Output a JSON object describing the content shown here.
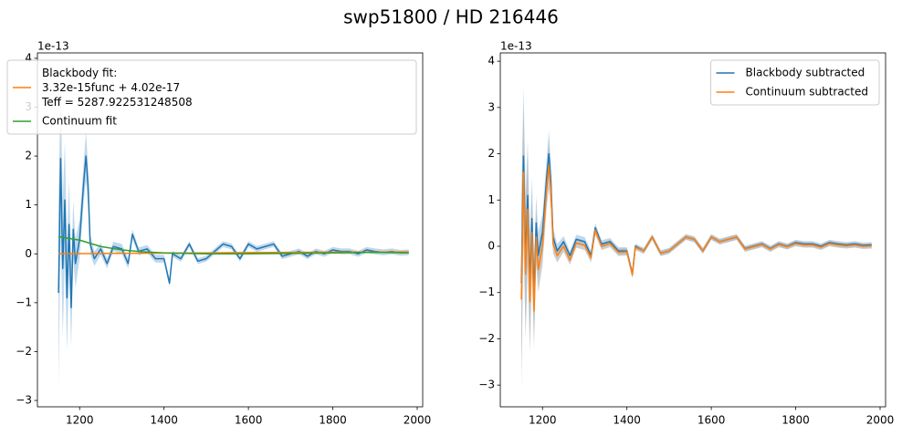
{
  "title": "swp51800 / HD 216446",
  "chart_data": [
    {
      "type": "line",
      "offset_text": "1e-13",
      "legend": "upper right",
      "x": [
        1150,
        1155,
        1160,
        1165,
        1170,
        1175,
        1180,
        1185,
        1190,
        1200,
        1210,
        1215,
        1220,
        1225,
        1235,
        1250,
        1265,
        1280,
        1300,
        1315,
        1325,
        1340,
        1360,
        1380,
        1400,
        1413,
        1420,
        1440,
        1460,
        1480,
        1500,
        1520,
        1540,
        1560,
        1580,
        1600,
        1620,
        1640,
        1660,
        1680,
        1700,
        1720,
        1740,
        1760,
        1780,
        1800,
        1820,
        1840,
        1860,
        1880,
        1900,
        1920,
        1940,
        1960,
        1980
      ],
      "xlim": [
        1100,
        2013
      ],
      "ylim": [
        -3.13,
        4.11
      ],
      "xticks": [
        1200,
        1400,
        1600,
        1800,
        2000
      ],
      "yticks": [
        {
          "value": -3,
          "label": "−3"
        },
        {
          "value": -2,
          "label": "−2"
        },
        {
          "value": -1,
          "label": "−1"
        },
        0,
        1,
        2,
        3,
        4
      ],
      "series": [
        {
          "color": "#1f77b4",
          "band_color": "#a6c8e4",
          "values": [
            -0.8,
            1.95,
            -0.3,
            1.1,
            -0.9,
            0.6,
            -1.1,
            0.5,
            -0.2,
            0.3,
            1.5,
            2.0,
            1.4,
            0.2,
            -0.1,
            0.1,
            -0.2,
            0.15,
            0.1,
            -0.2,
            0.4,
            0.05,
            0.1,
            -0.1,
            -0.1,
            -0.6,
            0.0,
            -0.1,
            0.2,
            -0.15,
            -0.1,
            0.05,
            0.2,
            0.15,
            -0.1,
            0.2,
            0.1,
            0.15,
            0.2,
            -0.05,
            0.0,
            0.05,
            -0.05,
            0.05,
            0.0,
            0.08,
            0.05,
            0.05,
            0.0,
            0.08,
            0.05,
            0.03,
            0.05,
            0.02,
            0.03
          ],
          "errors": [
            1.9,
            1.5,
            1.4,
            1.2,
            1.1,
            0.9,
            0.8,
            0.6,
            0.5,
            0.4,
            0.4,
            0.5,
            0.4,
            0.2,
            0.15,
            0.12,
            0.1,
            0.1,
            0.1,
            0.1,
            0.1,
            0.08,
            0.08,
            0.08,
            0.08,
            0.08,
            0.06,
            0.06,
            0.06,
            0.06,
            0.06,
            0.06,
            0.06,
            0.06,
            0.06,
            0.06,
            0.06,
            0.06,
            0.06,
            0.06,
            0.06,
            0.06,
            0.06,
            0.06,
            0.06,
            0.06,
            0.06,
            0.06,
            0.06,
            0.06,
            0.06,
            0.06,
            0.06,
            0.06,
            0.06
          ]
        },
        {
          "name": "Blackbody fit:\n3.32e-15func + 4.02e-17\nTeff = 5287.922531248508",
          "color": "#ff7f0e",
          "x": [
            1150,
            1300,
            1500,
            1700,
            1980
          ],
          "values": [
            0.0,
            0.01,
            0.02,
            0.03,
            0.04
          ]
        },
        {
          "name": "Continuum fit",
          "color": "#2ca02c",
          "x": [
            1150,
            1200,
            1250,
            1300,
            1350,
            1400,
            1500,
            1600,
            1700,
            1800,
            1900,
            1980
          ],
          "values": [
            0.35,
            0.28,
            0.15,
            0.08,
            0.04,
            0.02,
            0.0,
            0.0,
            0.01,
            0.02,
            0.03,
            0.02
          ]
        }
      ]
    },
    {
      "type": "line",
      "offset_text": "1e-13",
      "legend": "upper right",
      "x": [
        1150,
        1155,
        1160,
        1165,
        1170,
        1175,
        1180,
        1185,
        1190,
        1200,
        1210,
        1215,
        1220,
        1225,
        1235,
        1250,
        1265,
        1280,
        1300,
        1315,
        1325,
        1340,
        1360,
        1380,
        1400,
        1413,
        1420,
        1440,
        1460,
        1480,
        1500,
        1520,
        1540,
        1560,
        1580,
        1600,
        1620,
        1640,
        1660,
        1680,
        1700,
        1720,
        1740,
        1760,
        1780,
        1800,
        1820,
        1840,
        1860,
        1880,
        1900,
        1920,
        1940,
        1960,
        1980
      ],
      "xlim": [
        1100,
        2013
      ],
      "ylim": [
        -3.47,
        4.18
      ],
      "xticks": [
        1200,
        1400,
        1600,
        1800,
        2000
      ],
      "yticks": [
        {
          "value": -3,
          "label": "−3"
        },
        {
          "value": -2,
          "label": "−2"
        },
        {
          "value": -1,
          "label": "−1"
        },
        0,
        1,
        2,
        3,
        4
      ],
      "series": [
        {
          "name": "Blackbody subtracted",
          "color": "#1f77b4",
          "band_color": "#a6c8e4",
          "values": [
            -0.8,
            1.95,
            -0.3,
            1.1,
            -0.9,
            0.6,
            -1.1,
            0.5,
            -0.2,
            0.3,
            1.5,
            2.0,
            1.4,
            0.2,
            -0.1,
            0.1,
            -0.2,
            0.15,
            0.1,
            -0.2,
            0.4,
            0.05,
            0.1,
            -0.1,
            -0.1,
            -0.6,
            0.0,
            -0.1,
            0.2,
            -0.15,
            -0.1,
            0.05,
            0.2,
            0.15,
            -0.1,
            0.2,
            0.1,
            0.15,
            0.2,
            -0.05,
            0.0,
            0.05,
            -0.05,
            0.05,
            0.0,
            0.08,
            0.05,
            0.05,
            0.0,
            0.08,
            0.05,
            0.03,
            0.05,
            0.02,
            0.03
          ],
          "errors": [
            1.9,
            1.5,
            1.4,
            1.2,
            1.1,
            0.9,
            0.8,
            0.6,
            0.5,
            0.4,
            0.4,
            0.5,
            0.4,
            0.2,
            0.15,
            0.12,
            0.1,
            0.1,
            0.1,
            0.1,
            0.1,
            0.08,
            0.08,
            0.08,
            0.08,
            0.08,
            0.06,
            0.06,
            0.06,
            0.06,
            0.06,
            0.06,
            0.06,
            0.06,
            0.06,
            0.06,
            0.06,
            0.06,
            0.06,
            0.06,
            0.06,
            0.06,
            0.06,
            0.06,
            0.06,
            0.06,
            0.06,
            0.06,
            0.06,
            0.06,
            0.06,
            0.06,
            0.06,
            0.06,
            0.06
          ]
        },
        {
          "name": "Continuum subtracted",
          "color": "#ff7f0e",
          "band_color": "#b8b8b8",
          "values": [
            -1.15,
            1.6,
            -0.6,
            0.8,
            -1.2,
            0.3,
            -1.4,
            0.2,
            -0.5,
            0.0,
            1.25,
            1.75,
            1.2,
            0.05,
            -0.2,
            0.0,
            -0.3,
            0.07,
            0.02,
            -0.25,
            0.35,
            0.0,
            0.06,
            -0.13,
            -0.12,
            -0.62,
            -0.02,
            -0.1,
            0.2,
            -0.15,
            -0.1,
            0.05,
            0.2,
            0.15,
            -0.1,
            0.2,
            0.1,
            0.15,
            0.2,
            -0.06,
            -0.01,
            0.04,
            -0.06,
            0.04,
            -0.01,
            0.06,
            0.03,
            0.03,
            -0.02,
            0.06,
            0.03,
            0.01,
            0.03,
            0.0,
            0.01
          ],
          "errors": [
            1.9,
            1.5,
            1.4,
            1.2,
            1.1,
            0.9,
            0.8,
            0.6,
            0.5,
            0.4,
            0.4,
            0.5,
            0.4,
            0.2,
            0.15,
            0.12,
            0.1,
            0.1,
            0.1,
            0.1,
            0.1,
            0.08,
            0.08,
            0.08,
            0.08,
            0.08,
            0.06,
            0.06,
            0.06,
            0.06,
            0.06,
            0.06,
            0.06,
            0.06,
            0.06,
            0.06,
            0.06,
            0.06,
            0.06,
            0.06,
            0.06,
            0.06,
            0.06,
            0.06,
            0.06,
            0.06,
            0.06,
            0.06,
            0.06,
            0.06,
            0.06,
            0.06,
            0.06,
            0.06,
            0.06
          ]
        }
      ]
    }
  ]
}
